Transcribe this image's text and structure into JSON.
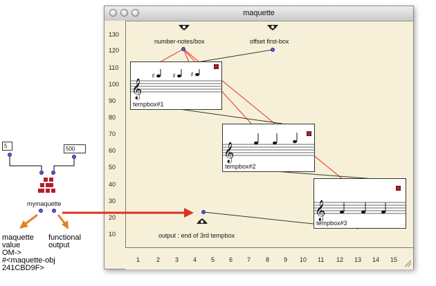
{
  "patch": {
    "input_left": "5",
    "input_right": "500",
    "object_name": "mymaquette",
    "annotation_left": [
      "maquette",
      "value",
      "OM->",
      "#<maquette-obj",
      "241CBD9F>"
    ],
    "annotation_right": [
      "functional",
      "output"
    ]
  },
  "window": {
    "title": "maquette",
    "inputs": {
      "number_notes": "number-notes/box",
      "offset_first": "offset first-box"
    },
    "output_label": "output : end of 3rd tempbox",
    "tempboxes": [
      {
        "label": "tempbox#1"
      },
      {
        "label": "tempbox#2"
      },
      {
        "label": "tempbox#3"
      }
    ],
    "y_axis": [
      "130",
      "120",
      "110",
      "100",
      "90",
      "80",
      "70",
      "60",
      "50",
      "40",
      "30",
      "20",
      "10"
    ],
    "x_axis": [
      "1",
      "2",
      "3",
      "4",
      "5",
      "6",
      "7",
      "8",
      "9",
      "10",
      "11",
      "12",
      "13",
      "14",
      "15"
    ]
  },
  "colors": {
    "canvas": "#f7f0d9",
    "arrow_orange": "#e8801f",
    "arrow_red": "#d8321e",
    "connection_red": "#e64b3c",
    "inlet_blue": "#5b57d8",
    "maquette_red": "#a5222b"
  }
}
